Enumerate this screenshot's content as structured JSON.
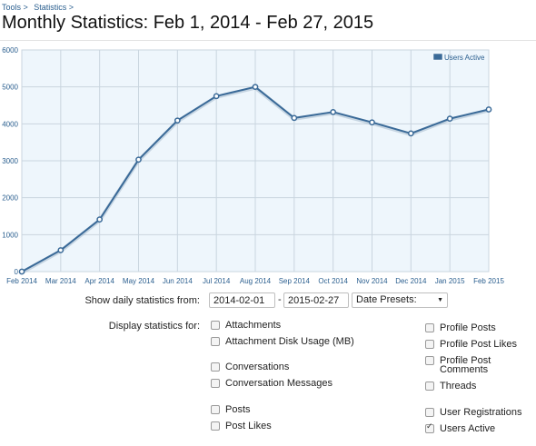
{
  "breadcrumb": {
    "items": [
      "Tools >",
      "Statistics >"
    ]
  },
  "page_title": "Monthly Statistics: Feb 1, 2014 - Feb 27, 2015",
  "chart_data": {
    "type": "line",
    "categories": [
      "Feb 2014",
      "Mar 2014",
      "Apr 2014",
      "May 2014",
      "Jun 2014",
      "Jul 2014",
      "Aug 2014",
      "Sep 2014",
      "Oct 2014",
      "Nov 2014",
      "Dec 2014",
      "Jan 2015",
      "Feb 2015"
    ],
    "series": [
      {
        "name": "Users Active",
        "values": [
          0,
          580,
          1410,
          3030,
          4090,
          4750,
          5000,
          4160,
          4320,
          4040,
          3740,
          4140,
          4390
        ]
      }
    ],
    "ylim": [
      0,
      6000
    ],
    "yticks": [
      "0",
      "1000",
      "2000",
      "3000",
      "4000",
      "5000",
      "6000"
    ],
    "grid": true,
    "legend": "top-right",
    "colors": {
      "line": "#3a6a98",
      "fill": "#eef6fc",
      "grid": "#c9d5df"
    }
  },
  "controls": {
    "daily_label": "Show daily statistics from:",
    "start_date": "2014-02-01",
    "date_separator": "-",
    "end_date": "2015-02-27",
    "date_presets": "Date Presets:",
    "display_label": "Display statistics for:"
  },
  "stats": {
    "attachments": {
      "label": "Attachments",
      "checked": false
    },
    "attachment_disk_usage": {
      "label": "Attachment Disk Usage (MB)",
      "checked": false
    },
    "conversations": {
      "label": "Conversations",
      "checked": false
    },
    "conversation_messages": {
      "label": "Conversation Messages",
      "checked": false
    },
    "posts": {
      "label": "Posts",
      "checked": false
    },
    "post_likes": {
      "label": "Post Likes",
      "checked": false
    },
    "profile_posts": {
      "label": "Profile Posts",
      "checked": false
    },
    "profile_post_likes": {
      "label": "Profile Post Likes",
      "checked": false
    },
    "profile_post_comments": {
      "label": "Profile Post Comments",
      "checked": false
    },
    "threads": {
      "label": "Threads",
      "checked": false
    },
    "user_registrations": {
      "label": "User Registrations",
      "checked": false
    },
    "users_active": {
      "label": "Users Active",
      "checked": true
    }
  }
}
